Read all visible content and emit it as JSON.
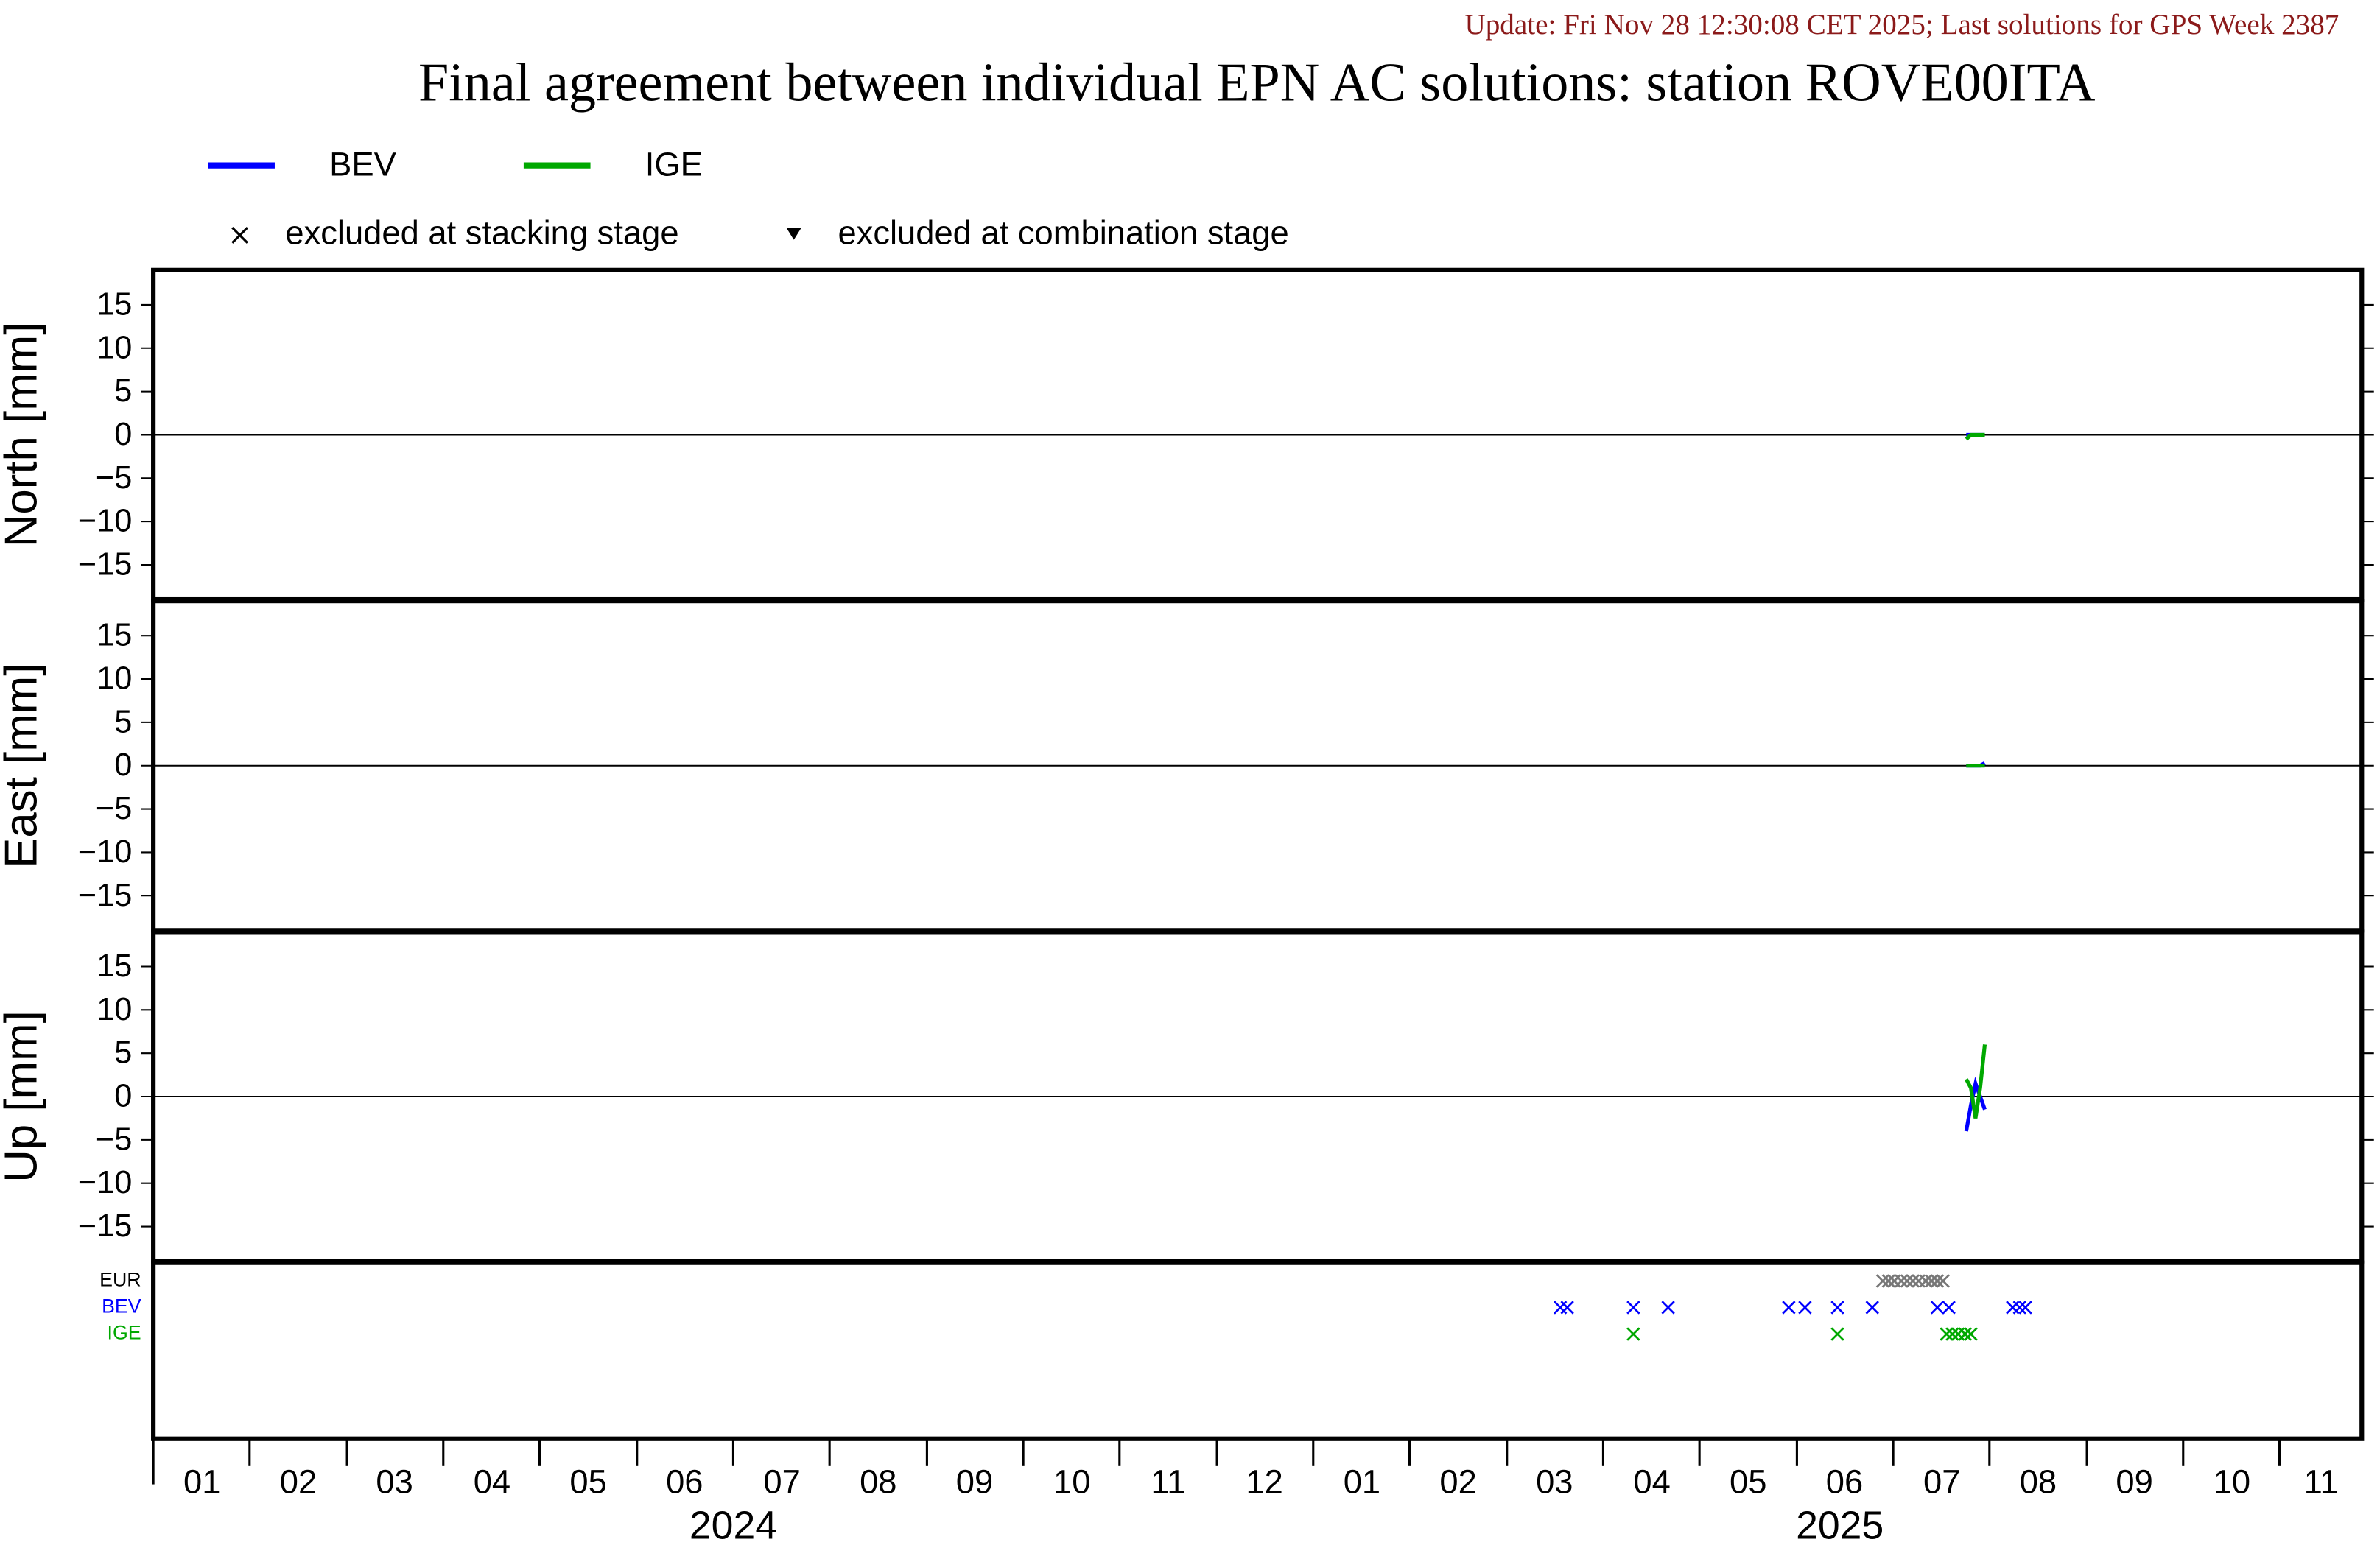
{
  "chart_data": {
    "type": "line",
    "update": "Update: Fri Nov 28 12:30:08 CET 2025; Last solutions for GPS Week 2387",
    "title": "Final agreement between individual EPN AC solutions: station ROVE00ITA",
    "legend_markers": [
      "excluded at stacking stage",
      "excluded at combination stage"
    ],
    "series": [
      {
        "name": "BEV",
        "color": "#0000ff"
      },
      {
        "name": "IGE",
        "color": "#00a800"
      }
    ],
    "xlim": [
      2024,
      2025.904
    ],
    "xticks": [
      2024,
      2024.083,
      2024.167,
      2024.25,
      2024.333,
      2024.417,
      2024.5,
      2024.583,
      2024.667,
      2024.75,
      2024.833,
      2024.917,
      2025,
      2025.083,
      2025.167,
      2025.25,
      2025.333,
      2025.417,
      2025.5,
      2025.583,
      2025.667,
      2025.75,
      2025.833
    ],
    "month_labels": [
      {
        "value": 2024.042,
        "label": "01"
      },
      {
        "value": 2024.125,
        "label": "02"
      },
      {
        "value": 2024.208,
        "label": "03"
      },
      {
        "value": 2024.292,
        "label": "04"
      },
      {
        "value": 2024.375,
        "label": "05"
      },
      {
        "value": 2024.458,
        "label": "06"
      },
      {
        "value": 2024.542,
        "label": "07"
      },
      {
        "value": 2024.625,
        "label": "08"
      },
      {
        "value": 2024.708,
        "label": "09"
      },
      {
        "value": 2024.792,
        "label": "10"
      },
      {
        "value": 2024.875,
        "label": "11"
      },
      {
        "value": 2024.958,
        "label": "12"
      },
      {
        "value": 2025.042,
        "label": "01"
      },
      {
        "value": 2025.125,
        "label": "02"
      },
      {
        "value": 2025.208,
        "label": "03"
      },
      {
        "value": 2025.292,
        "label": "04"
      },
      {
        "value": 2025.375,
        "label": "05"
      },
      {
        "value": 2025.458,
        "label": "06"
      },
      {
        "value": 2025.542,
        "label": "07"
      },
      {
        "value": 2025.625,
        "label": "08"
      },
      {
        "value": 2025.708,
        "label": "09"
      },
      {
        "value": 2025.792,
        "label": "10"
      },
      {
        "value": 2025.869,
        "label": "11"
      }
    ],
    "year_labels": [
      {
        "value": 2024.5,
        "label": "2024"
      },
      {
        "value": 2025.454,
        "label": "2025"
      }
    ],
    "ylim": [
      -19,
      19
    ],
    "yticks": [
      15,
      10,
      5,
      0,
      {
        "value": -5,
        "label": "−5"
      },
      {
        "value": -10,
        "label": "−10"
      },
      {
        "value": -15,
        "label": "−15"
      }
    ],
    "panels": [
      {
        "ylabel": "North [mm]",
        "x": [
          2025.563,
          2025.567,
          2025.571,
          2025.575,
          2025.579
        ],
        "values": [
          [
            0,
            0,
            0,
            0,
            0
          ],
          [
            -0.5,
            0,
            0,
            0,
            0
          ]
        ]
      },
      {
        "ylabel": "East [mm]",
        "x": [
          2025.563,
          2025.567,
          2025.571,
          2025.575,
          2025.579
        ],
        "values": [
          [
            0,
            0,
            0,
            0,
            0.3
          ],
          [
            0,
            0,
            0,
            0,
            0
          ]
        ]
      },
      {
        "ylabel": "Up [mm]",
        "x": [
          2025.563,
          2025.567,
          2025.571,
          2025.575,
          2025.579
        ],
        "values": [
          [
            -4,
            -1,
            1.5,
            0,
            -1.5
          ],
          [
            2,
            1,
            -2.5,
            1,
            6
          ]
        ]
      }
    ],
    "exclusions": [
      {
        "name": "EUR",
        "label_color": "#000000",
        "color": "#777777",
        "x": [
          2025.491,
          2025.496,
          2025.501,
          2025.507,
          2025.512,
          2025.517,
          2025.522,
          2025.528,
          2025.533,
          2025.538,
          2025.543
        ]
      },
      {
        "name": "BEV",
        "label_color": "#0000ff",
        "color": "#0000ff",
        "x": [
          2025.213,
          2025.219,
          2025.276,
          2025.306,
          2025.41,
          2025.424,
          2025.452,
          2025.482,
          2025.538,
          2025.548,
          2025.603,
          2025.609,
          2025.614
        ]
      },
      {
        "name": "IGE",
        "label_color": "#00a800",
        "color": "#00a800",
        "x": [
          2025.276,
          2025.452,
          2025.546,
          2025.551,
          2025.556,
          2025.562,
          2025.567
        ]
      }
    ]
  }
}
